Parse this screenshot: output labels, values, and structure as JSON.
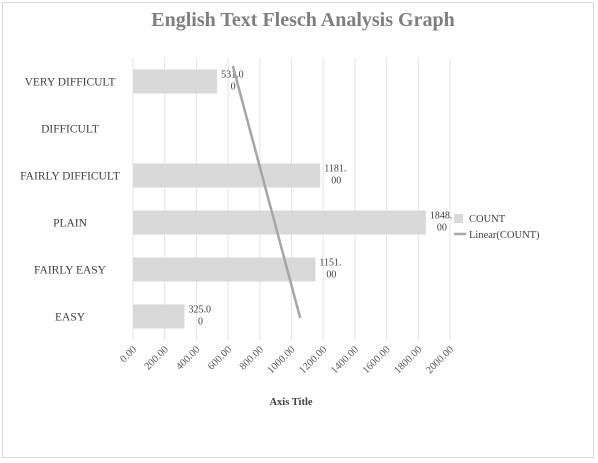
{
  "chart_data": {
    "type": "bar",
    "orientation": "horizontal",
    "title": "English Text Flesch Analysis Graph",
    "xlabel": "Axis Title",
    "ylabel": "",
    "categories": [
      "VERY DIFFICULT",
      "DIFFICULT",
      "FAIRLY DIFFICULT",
      "PLAIN",
      "FAIRLY EASY",
      "EASY"
    ],
    "series": [
      {
        "name": "COUNT",
        "values": [
          531,
          0,
          1181,
          1848,
          1151,
          325
        ],
        "data_labels": [
          [
            "531.0",
            "0"
          ],
          null,
          [
            "1181.",
            "00"
          ],
          [
            "1848.",
            "00"
          ],
          [
            "1151.",
            "00"
          ],
          [
            "325.0",
            "0"
          ]
        ],
        "color": "#d9d9d9"
      }
    ],
    "trendline": {
      "name": "Linear(COUNT)",
      "type": "linear",
      "color": "#a6a6a6",
      "start_value": 630,
      "end_value": 1055
    },
    "xlim": [
      0,
      2000
    ],
    "x_ticks": [
      "0.00",
      "200.00",
      "400.00",
      "600.00",
      "800.00",
      "1000.00",
      "1200.00",
      "1400.00",
      "1600.00",
      "1800.00",
      "2000.00"
    ],
    "grid": true,
    "legend_position": "right"
  }
}
